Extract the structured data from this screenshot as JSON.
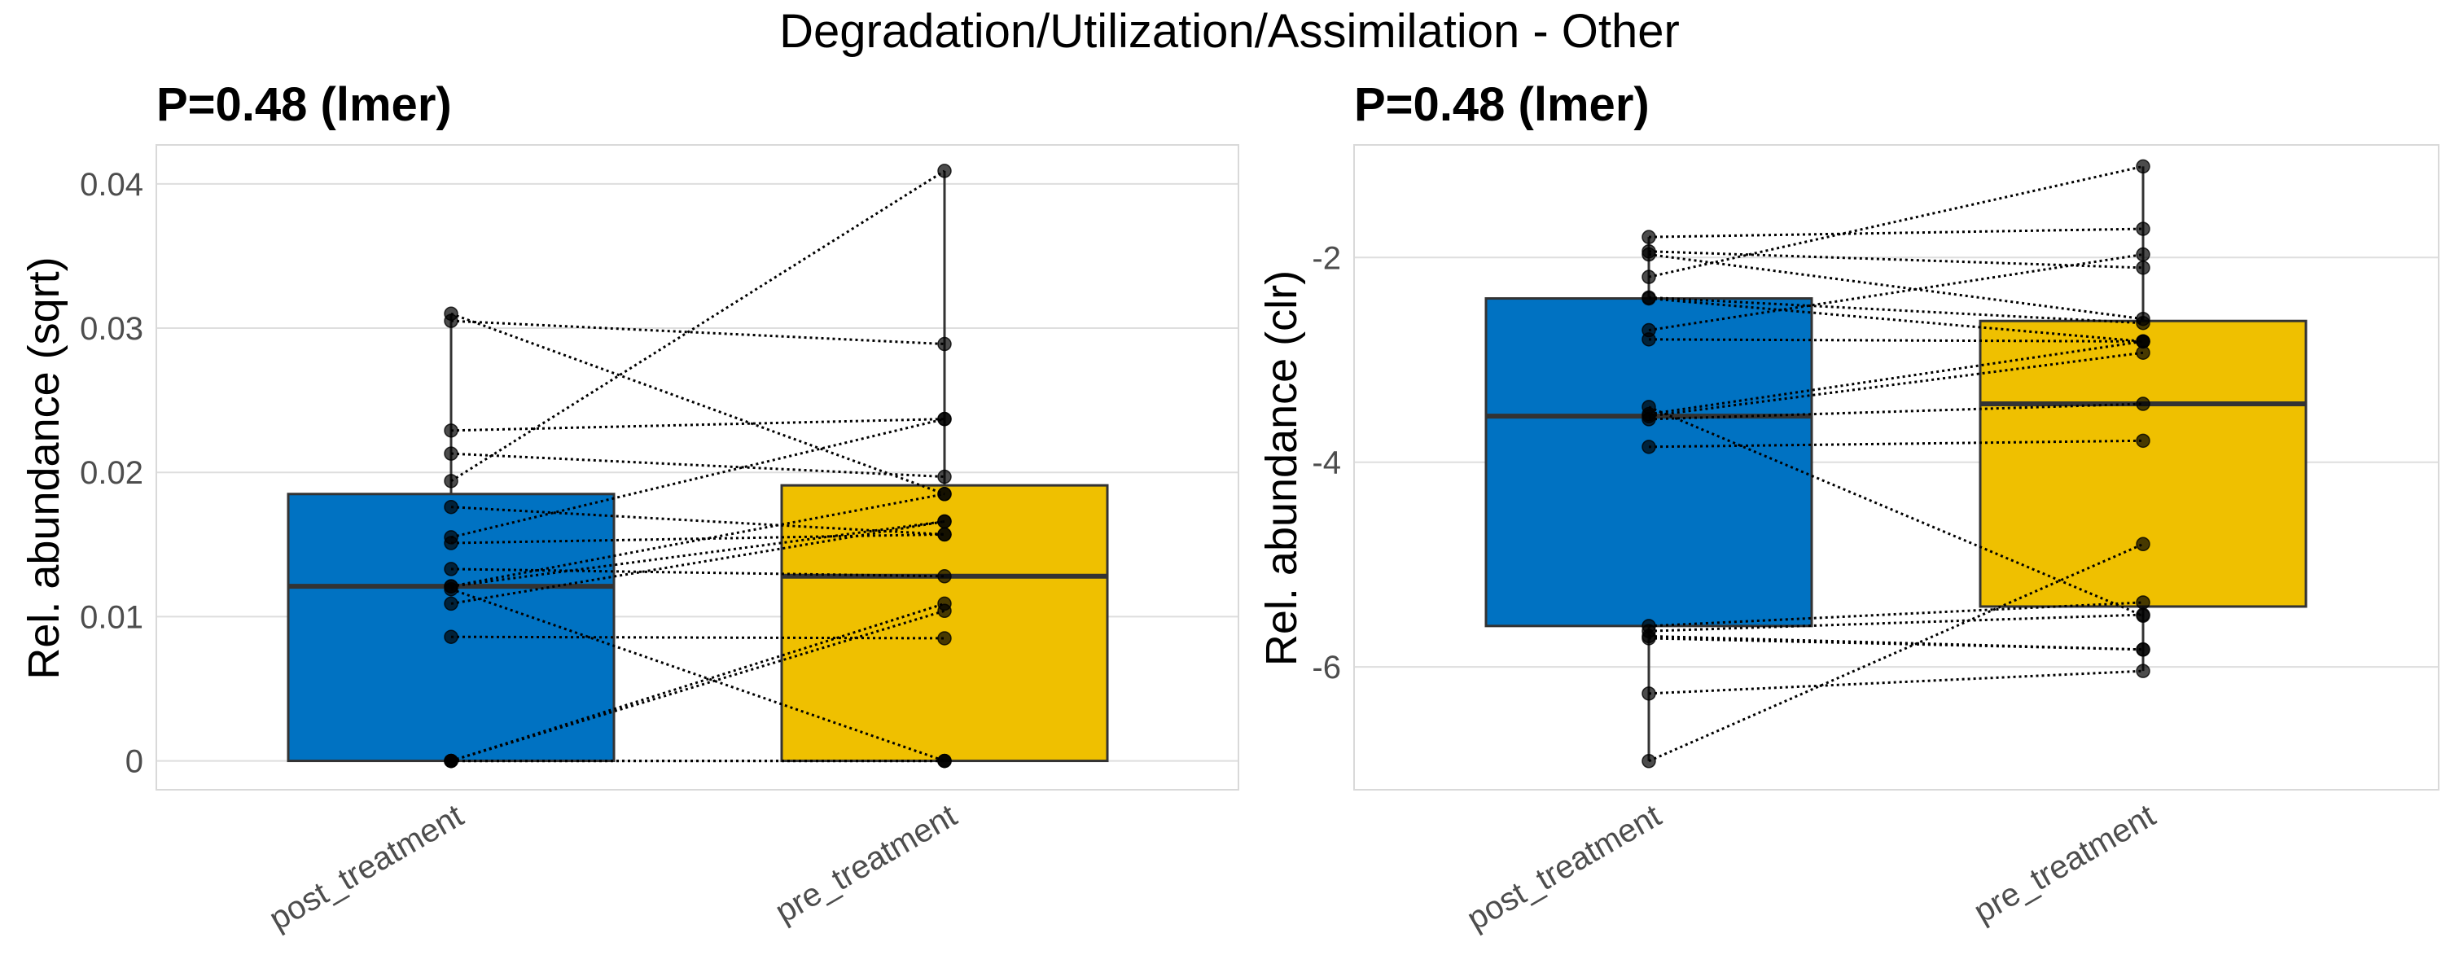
{
  "figure": {
    "suptitle": "Degradation/Utilization/Assimilation - Other"
  },
  "chart_data": [
    {
      "type": "boxplot-paired",
      "title": "P=0.48 (lmer)",
      "xlabel": "",
      "ylabel": "Rel. abundance (sqrt)",
      "categories": [
        "post_treatment",
        "pre_treatment"
      ],
      "colors": {
        "post_treatment": "#0072C2",
        "pre_treatment": "#EFC000"
      },
      "ylim": [
        -0.002,
        0.0427
      ],
      "yticks": [
        0,
        0.01,
        0.02,
        0.03,
        0.04
      ],
      "ytick_labels": [
        "0",
        "0.01",
        "0.02",
        "0.03",
        "0.04"
      ],
      "grid": true,
      "boxes": [
        {
          "category": "post_treatment",
          "whisker_low": 0,
          "q1": 0,
          "median": 0.0121,
          "q3": 0.0185,
          "whisker_high": 0.031
        },
        {
          "category": "pre_treatment",
          "whisker_low": 0,
          "q1": 0,
          "median": 0.0128,
          "q3": 0.0191,
          "whisker_high": 0.0409
        }
      ],
      "pairs": [
        {
          "post": 0.031,
          "pre": 0.0185
        },
        {
          "post": 0.0305,
          "pre": 0.0289
        },
        {
          "post": 0.0229,
          "pre": 0.0237
        },
        {
          "post": 0.0213,
          "pre": 0.0197
        },
        {
          "post": 0.0194,
          "pre": 0.0409
        },
        {
          "post": 0.0176,
          "pre": 0.0157
        },
        {
          "post": 0.0155,
          "pre": 0.0237
        },
        {
          "post": 0.0151,
          "pre": 0.0157
        },
        {
          "post": 0.0133,
          "pre": 0.0128
        },
        {
          "post": 0.0121,
          "pre": 0.0185
        },
        {
          "post": 0.0121,
          "pre": 0.0166
        },
        {
          "post": 0.0119,
          "pre": 0
        },
        {
          "post": 0.0109,
          "pre": 0.0166
        },
        {
          "post": 0.0086,
          "pre": 0.0085
        },
        {
          "post": 0,
          "pre": 0.0109
        },
        {
          "post": 0,
          "pre": 0.0104
        },
        {
          "post": 0,
          "pre": 0
        },
        {
          "post": 0,
          "pre": 0
        }
      ]
    },
    {
      "type": "boxplot-paired",
      "title": "P=0.48 (lmer)",
      "xlabel": "",
      "ylabel": "Rel. abundance (clr)",
      "categories": [
        "post_treatment",
        "pre_treatment"
      ],
      "colors": {
        "post_treatment": "#0072C2",
        "pre_treatment": "#EFC000"
      },
      "ylim": [
        -7.2,
        -0.9
      ],
      "yticks": [
        -6,
        -4,
        -2
      ],
      "ytick_labels": [
        "-6",
        "-4",
        "-2"
      ],
      "grid": true,
      "boxes": [
        {
          "category": "post_treatment",
          "whisker_low": -6.92,
          "q1": -5.6,
          "median": -3.55,
          "q3": -2.4,
          "whisker_high": -1.8
        },
        {
          "category": "pre_treatment",
          "whisker_low": -6.04,
          "q1": -5.41,
          "median": -3.43,
          "q3": -2.62,
          "whisker_high": -1.11
        }
      ],
      "pairs": [
        {
          "post": -1.8,
          "pre": -1.72
        },
        {
          "post": -1.94,
          "pre": -2.1
        },
        {
          "post": -1.97,
          "pre": -2.6
        },
        {
          "post": -2.19,
          "pre": -1.11
        },
        {
          "post": -2.39,
          "pre": -2.64
        },
        {
          "post": -2.4,
          "pre": -2.82
        },
        {
          "post": -2.71,
          "pre": -1.97
        },
        {
          "post": -2.8,
          "pre": -2.82
        },
        {
          "post": -3.46,
          "pre": -5.5
        },
        {
          "post": -3.53,
          "pre": -2.82
        },
        {
          "post": -3.55,
          "pre": -2.93
        },
        {
          "post": -3.58,
          "pre": -3.43
        },
        {
          "post": -3.85,
          "pre": -3.79
        },
        {
          "post": -5.6,
          "pre": -5.37
        },
        {
          "post": -5.65,
          "pre": -5.49
        },
        {
          "post": -5.7,
          "pre": -5.83
        },
        {
          "post": -5.72,
          "pre": -5.83
        },
        {
          "post": -6.26,
          "pre": -6.04
        },
        {
          "post": -6.92,
          "pre": -4.8
        }
      ]
    }
  ]
}
